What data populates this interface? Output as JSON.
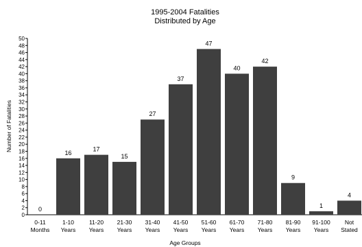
{
  "chart_data": {
    "type": "bar",
    "title": "1995-2004 Fatalities",
    "subtitle": "Distributed by Age",
    "xlabel": "Age Groups",
    "ylabel": "Number of Fatalities",
    "ylim": [
      0,
      50
    ],
    "ytick_step": 2,
    "grid": false,
    "legend": "none",
    "bar_color": "#3f3f3f",
    "categories": [
      [
        "0-11",
        "Months"
      ],
      [
        "1-10",
        "Years"
      ],
      [
        "11-20",
        "Years"
      ],
      [
        "21-30",
        "Years"
      ],
      [
        "31-40",
        "Years"
      ],
      [
        "41-50",
        "Years"
      ],
      [
        "51-60",
        "Years"
      ],
      [
        "61-70",
        "Years"
      ],
      [
        "71-80",
        "Years"
      ],
      [
        "81-90",
        "Years"
      ],
      [
        "91-100",
        "Years"
      ],
      [
        "Not",
        "Stated"
      ]
    ],
    "values": [
      0,
      16,
      17,
      15,
      27,
      37,
      47,
      40,
      42,
      9,
      1,
      4
    ]
  }
}
